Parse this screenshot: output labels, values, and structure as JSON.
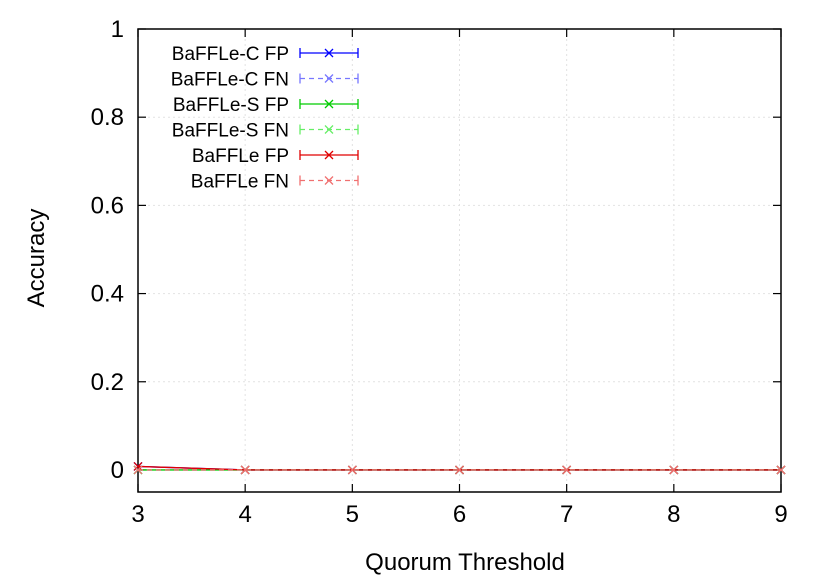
{
  "chart_data": {
    "type": "line",
    "title": "",
    "xlabel": "Quorum Threshold",
    "ylabel": "Accuracy",
    "xlim": [
      3,
      9
    ],
    "ylim": [
      -0.05,
      1
    ],
    "xticks": [
      "3",
      "4",
      "5",
      "6",
      "7",
      "8",
      "9"
    ],
    "yticks": [
      "0",
      "0.2",
      "0.4",
      "0.6",
      "0.8",
      "1"
    ],
    "grid": true,
    "legend_position": "top-left",
    "x": [
      3,
      4,
      5,
      6,
      7,
      8,
      9
    ],
    "series": [
      {
        "name": "BaFFLe-C FP",
        "color": "#0000ff",
        "dash": "solid",
        "values": [
          0.008,
          0,
          0,
          0,
          0,
          0,
          0
        ]
      },
      {
        "name": "BaFFLe-C FN",
        "color": "#7777ff",
        "dash": "dashed",
        "values": [
          0,
          0,
          0,
          0,
          0,
          0,
          0
        ]
      },
      {
        "name": "BaFFLe-S FP",
        "color": "#00cc00",
        "dash": "solid",
        "values": [
          0,
          0,
          0,
          0,
          0,
          0,
          0
        ]
      },
      {
        "name": "BaFFLe-S FN",
        "color": "#66ee66",
        "dash": "dashed",
        "values": [
          0,
          0,
          0,
          0,
          0,
          0,
          0
        ]
      },
      {
        "name": "BaFFLe FP",
        "color": "#e00000",
        "dash": "solid",
        "values": [
          0.008,
          0,
          0,
          0,
          0,
          0,
          0
        ]
      },
      {
        "name": "BaFFLe FN",
        "color": "#f07070",
        "dash": "dashed",
        "values": [
          0,
          0,
          0,
          0,
          0,
          0,
          0
        ]
      }
    ]
  }
}
